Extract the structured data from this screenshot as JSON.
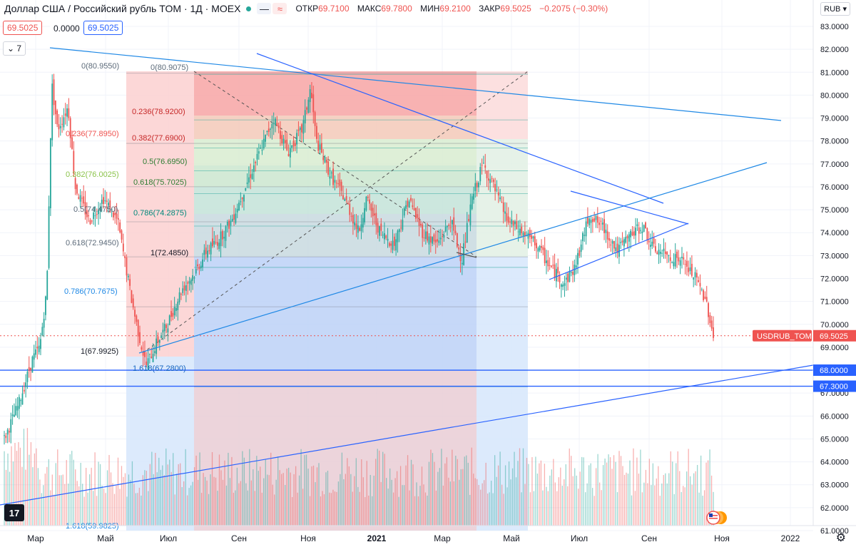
{
  "header": {
    "title": "Доллар США / Российский рубль TOM · 1Д · MOEX",
    "ohlc_labels": [
      "ОТКР",
      "МАКС",
      "МИН",
      "ЗАКР"
    ],
    "ohlc_values": [
      "69.7100",
      "69.7800",
      "69.2100",
      "69.5025"
    ],
    "change": "−0.2075 (−0.30%)",
    "icon_eye": "eye-off-icon",
    "icon_wave": "≈"
  },
  "pills": {
    "sell": "69.5025",
    "spread": "0.0000",
    "buy": "69.5025",
    "indicators": "7"
  },
  "currency": "RUB",
  "logo": "17",
  "colors": {
    "up": "#26a69a",
    "down": "#ef5350",
    "trend": "#2962ff",
    "trend_light": "#1e88e5",
    "grid": "#f0f3fa"
  },
  "chart_data": {
    "type": "candlestick",
    "symbol": "USDRUB_TOM",
    "last_price": "69.5025",
    "y_axis": {
      "ticks": [
        "61.0000",
        "62.0000",
        "63.0000",
        "64.0000",
        "65.0000",
        "66.0000",
        "67.0000",
        "68.0000",
        "69.0000",
        "70.0000",
        "71.0000",
        "72.0000",
        "73.0000",
        "74.0000",
        "75.0000",
        "76.0000",
        "77.0000",
        "78.0000",
        "79.0000",
        "80.0000",
        "81.0000",
        "82.0000",
        "83.0000"
      ],
      "range": [
        60.6,
        83.3
      ],
      "highlighted": [
        "68.0000",
        "67.3000",
        "69.5025"
      ]
    },
    "x_axis": {
      "ticks": [
        "Мар",
        "Май",
        "Июл",
        "Сен",
        "Ноя",
        "2021",
        "Мар",
        "Май",
        "Июл",
        "Сен",
        "Ноя",
        "2022"
      ],
      "bold": [
        "2021"
      ]
    },
    "price_path": [
      [
        0.0,
        65.0
      ],
      [
        0.02,
        66.5
      ],
      [
        0.04,
        68.5
      ],
      [
        0.05,
        69.0
      ],
      [
        0.06,
        71.5
      ],
      [
        0.067,
        80.5
      ],
      [
        0.075,
        78.5
      ],
      [
        0.09,
        79.5
      ],
      [
        0.1,
        76.0
      ],
      [
        0.12,
        74.5
      ],
      [
        0.14,
        75.5
      ],
      [
        0.16,
        74.5
      ],
      [
        0.18,
        71.0
      ],
      [
        0.19,
        69.5
      ],
      [
        0.2,
        68.2
      ],
      [
        0.215,
        69.2
      ],
      [
        0.23,
        70.0
      ],
      [
        0.25,
        71.5
      ],
      [
        0.27,
        72.3
      ],
      [
        0.285,
        73.2
      ],
      [
        0.3,
        73.6
      ],
      [
        0.32,
        74.5
      ],
      [
        0.34,
        76.0
      ],
      [
        0.36,
        77.5
      ],
      [
        0.38,
        79.0
      ],
      [
        0.4,
        77.5
      ],
      [
        0.42,
        78.5
      ],
      [
        0.432,
        80.3
      ],
      [
        0.44,
        78.0
      ],
      [
        0.46,
        76.5
      ],
      [
        0.48,
        75.5
      ],
      [
        0.5,
        74.0
      ],
      [
        0.51,
        75.5
      ],
      [
        0.53,
        74.0
      ],
      [
        0.55,
        73.5
      ],
      [
        0.57,
        75.5
      ],
      [
        0.59,
        74.0
      ],
      [
        0.61,
        73.5
      ],
      [
        0.63,
        74.5
      ],
      [
        0.645,
        72.8
      ],
      [
        0.66,
        75.5
      ],
      [
        0.675,
        77.0
      ],
      [
        0.69,
        76.0
      ],
      [
        0.71,
        74.5
      ],
      [
        0.73,
        74.0
      ],
      [
        0.75,
        73.5
      ],
      [
        0.77,
        72.5
      ],
      [
        0.79,
        71.8
      ],
      [
        0.805,
        72.5
      ],
      [
        0.825,
        74.8
      ],
      [
        0.845,
        74.2
      ],
      [
        0.865,
        73.2
      ],
      [
        0.88,
        73.8
      ],
      [
        0.9,
        74.3
      ],
      [
        0.915,
        73.3
      ],
      [
        0.935,
        73.0
      ],
      [
        0.955,
        72.8
      ],
      [
        0.975,
        72.0
      ],
      [
        0.99,
        71.0
      ],
      [
        1.0,
        69.5
      ]
    ],
    "annotations": {
      "fib_left": [
        {
          "label": "0(80.9550)",
          "value": 80.955
        },
        {
          "label": "0.236(77.8950)",
          "value": 77.895
        },
        {
          "label": "0.382(76.0025)",
          "value": 76.0025
        },
        {
          "label": "0.5(74.4750)",
          "value": 74.475
        },
        {
          "label": "0.618(72.9450)",
          "value": 72.945
        },
        {
          "label": "0.786(70.7675)",
          "value": 70.7675
        },
        {
          "label": "1(67.9925)",
          "value": 67.9925
        },
        {
          "label": "1.618(59.9825)",
          "value": 59.9825
        }
      ],
      "fib_right": [
        {
          "label": "0(80.9075)",
          "value": 80.9075
        },
        {
          "label": "0.236(78.9200)",
          "value": 78.92
        },
        {
          "label": "0.382(77.6900)",
          "value": 77.69
        },
        {
          "label": "0.5(76.6950)",
          "value": 76.695
        },
        {
          "label": "0.618(75.7025)",
          "value": 75.7025
        },
        {
          "label": "0.786(74.2875)",
          "value": 74.2875
        },
        {
          "label": "1(72.4850)",
          "value": 72.485
        },
        {
          "label": "1.618(67.2800)",
          "value": 67.28
        }
      ],
      "horizontal_levels": [
        68.0,
        67.3
      ]
    }
  }
}
